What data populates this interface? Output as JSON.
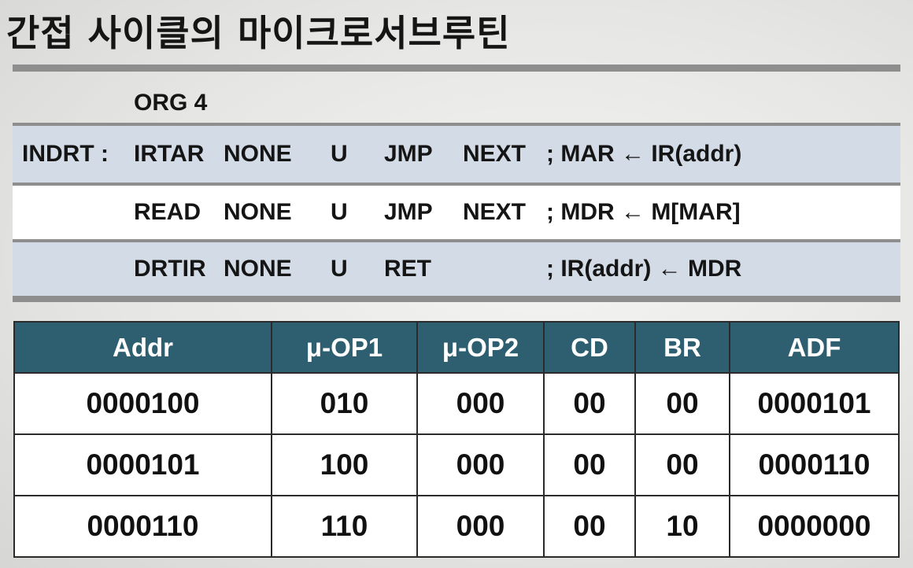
{
  "title": "간접 사이클의 마이크로서브루틴",
  "org_line": "ORG 4",
  "code_rows": [
    {
      "label": "INDRT :",
      "f1": "IRTAR",
      "f2": "NONE",
      "cd": "U",
      "br": "JMP",
      "ad": "NEXT",
      "comment": "; MAR ← IR(addr)"
    },
    {
      "label": "",
      "f1": "READ",
      "f2": "NONE",
      "cd": "U",
      "br": "JMP",
      "ad": "NEXT",
      "comment": "; MDR ← M[MAR]"
    },
    {
      "label": "",
      "f1": "DRTIR",
      "f2": "NONE",
      "cd": "U",
      "br": "RET",
      "ad": "",
      "comment": "; IR(addr) ← MDR"
    }
  ],
  "table": {
    "headers": [
      "Addr",
      "μ-OP1",
      "μ-OP2",
      "CD",
      "BR",
      "ADF"
    ],
    "rows": [
      [
        "0000100",
        "010",
        "000",
        "00",
        "00",
        "0000101"
      ],
      [
        "0000101",
        "100",
        "000",
        "00",
        "00",
        "0000110"
      ],
      [
        "0000110",
        "110",
        "000",
        "00",
        "10",
        "0000000"
      ]
    ]
  },
  "colors": {
    "header_bg": "#2d5f70",
    "shaded_row": "#d2dbe6",
    "rule": "#8e8e8e"
  }
}
